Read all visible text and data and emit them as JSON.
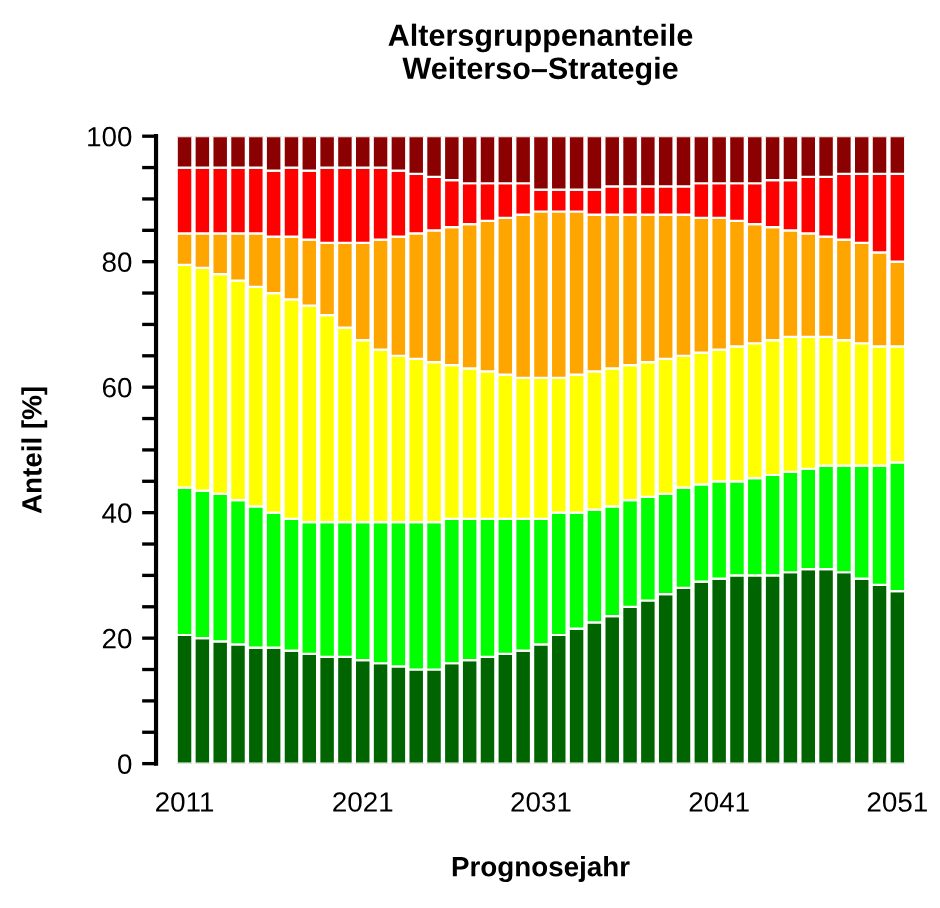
{
  "chart_data": {
    "type": "bar",
    "stacked": true,
    "title": "Altersgruppenanteile\nWeiterso–Strategie",
    "xlabel": "Prognosejahr",
    "ylabel": "Anteil [%]",
    "categories": [
      "2011",
      null,
      null,
      null,
      null,
      null,
      null,
      null,
      null,
      null,
      "2021",
      null,
      null,
      null,
      null,
      null,
      null,
      null,
      null,
      null,
      "2031",
      null,
      null,
      null,
      null,
      null,
      null,
      null,
      null,
      null,
      "2041",
      null,
      null,
      null,
      null,
      null,
      null,
      null,
      null,
      null,
      "2051"
    ],
    "series": [
      {
        "color": "#006400",
        "values": [
          20.5,
          20,
          19.5,
          19,
          18.5,
          18.5,
          18,
          17.5,
          17,
          17,
          16.5,
          16,
          15.5,
          15,
          15,
          16,
          16.5,
          17,
          17.5,
          18,
          19,
          20.5,
          21.5,
          22.5,
          23.5,
          25,
          26,
          27,
          28,
          29,
          29.5,
          30,
          30,
          30,
          30.5,
          31,
          31,
          30.5,
          29.5,
          28.5,
          27.5
        ]
      },
      {
        "color": "#00ff00",
        "values": [
          23.5,
          23.5,
          23.5,
          23,
          22.5,
          21.5,
          21,
          21,
          21.5,
          21.5,
          22,
          22.5,
          23,
          23.5,
          23.5,
          23,
          22.5,
          22,
          21.5,
          21,
          20,
          19.5,
          18.5,
          18,
          17.5,
          17,
          16.5,
          16,
          16,
          15.5,
          15.5,
          15,
          15.5,
          16,
          16,
          16,
          16.5,
          17,
          18,
          19,
          20.5
        ]
      },
      {
        "color": "#ffff00",
        "values": [
          35.5,
          35.5,
          35,
          35,
          35,
          35,
          35,
          34.5,
          33,
          31,
          29,
          27.5,
          26.5,
          26,
          25.5,
          24.5,
          24,
          23.5,
          23,
          22.5,
          22.5,
          21.5,
          22,
          22,
          22,
          21.5,
          21.5,
          21.5,
          21,
          21,
          21,
          21.5,
          21.5,
          21.5,
          21.5,
          21,
          20.5,
          20,
          19.5,
          19,
          18.5
        ]
      },
      {
        "color": "#ffa500",
        "values": [
          5,
          5.5,
          6.5,
          7.5,
          8.5,
          9,
          10,
          10.5,
          11.5,
          13.5,
          15.5,
          17.5,
          19,
          20,
          21,
          22,
          23,
          24,
          25,
          26,
          26.5,
          26.5,
          26,
          25,
          24.5,
          24,
          23.5,
          23,
          22.5,
          21.5,
          21,
          20,
          19,
          18,
          17,
          16.5,
          16,
          16,
          16,
          15,
          13.5
        ]
      },
      {
        "color": "#ff0000",
        "values": [
          10.5,
          10.5,
          10.5,
          10.5,
          10.5,
          10.5,
          11,
          11,
          12,
          12,
          12,
          11.5,
          10.5,
          9.5,
          8.5,
          7.5,
          6.5,
          6,
          5.5,
          5,
          3.5,
          3.5,
          3.5,
          4,
          4.5,
          4.5,
          4.5,
          4.5,
          4.5,
          5.5,
          5.5,
          6,
          6.5,
          7.5,
          8,
          9,
          9.5,
          10.5,
          11,
          12.5,
          14
        ]
      },
      {
        "color": "#8b0000",
        "values": [
          5,
          5,
          5,
          5,
          5,
          5.5,
          5,
          5.5,
          5,
          5,
          5,
          5,
          5.5,
          6,
          6.5,
          7,
          7.5,
          7.5,
          7.5,
          7.5,
          8.5,
          8.5,
          8.5,
          8.5,
          8,
          8,
          8,
          8,
          8,
          7.5,
          7.5,
          7.5,
          7.5,
          7,
          7,
          6.5,
          6.5,
          6,
          6,
          6,
          6
        ]
      }
    ],
    "ylim": [
      0,
      100
    ],
    "yticks": [
      0,
      {
        "value": 5,
        "label": null
      },
      {
        "value": 10,
        "label": null
      },
      {
        "value": 15,
        "label": null
      },
      20,
      {
        "value": 25,
        "label": null
      },
      {
        "value": 30,
        "label": null
      },
      {
        "value": 35,
        "label": null
      },
      40,
      {
        "value": 45,
        "label": null
      },
      {
        "value": 50,
        "label": null
      },
      {
        "value": 55,
        "label": null
      },
      60,
      {
        "value": 65,
        "label": null
      },
      {
        "value": 70,
        "label": null
      },
      {
        "value": 75,
        "label": null
      },
      80,
      {
        "value": 85,
        "label": null
      },
      {
        "value": 90,
        "label": null
      },
      {
        "value": 95,
        "label": null
      },
      100
    ],
    "grid": false
  }
}
